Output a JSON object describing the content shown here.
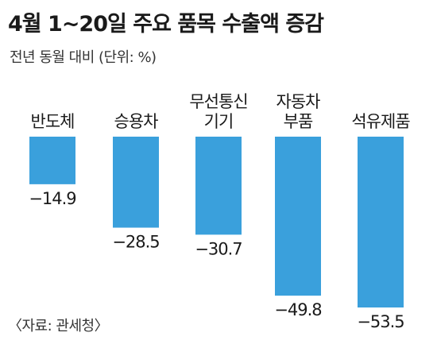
{
  "chart_data": {
    "type": "bar",
    "title": "4월 1~20일 주요 품목 수출액 증감",
    "subtitle": "전년 동월 대비 (단위: %)",
    "source": "〈자료: 관세청〉",
    "categories": [
      [
        "반도체"
      ],
      [
        "승용차"
      ],
      [
        "무선통신",
        "기기"
      ],
      [
        "자동차",
        "부품"
      ],
      [
        "석유제품"
      ]
    ],
    "values": [
      -14.9,
      -28.5,
      -30.7,
      -49.8,
      -53.5
    ],
    "value_labels": [
      "−14.9",
      "−28.5",
      "−30.7",
      "−49.8",
      "−53.5"
    ],
    "ylim": [
      -60,
      0
    ],
    "bar_color": "#3aa0dc",
    "grid": false
  }
}
